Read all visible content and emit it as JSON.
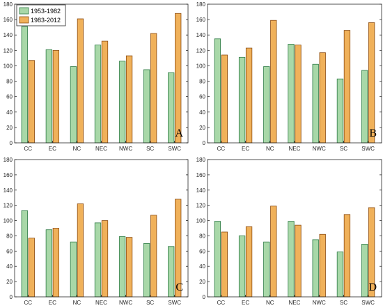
{
  "colors": {
    "series1": "#a8d8a8",
    "series1_stroke": "#2d7a45",
    "series2": "#f0b15a",
    "series2_stroke": "#8a4a10",
    "axis": "#262626"
  },
  "chart_data": [
    {
      "type": "bar",
      "panel_label": "A",
      "categories": [
        "CC",
        "EC",
        "NC",
        "NEC",
        "NWC",
        "SC",
        "SWC"
      ],
      "series": [
        {
          "name": "1953-1982",
          "values": [
            151,
            121,
            99,
            127,
            106,
            95,
            91
          ]
        },
        {
          "name": "1983-2012",
          "values": [
            107,
            120,
            161,
            132,
            113,
            142,
            168
          ]
        }
      ],
      "yticks": [
        0,
        20,
        40,
        60,
        80,
        100,
        120,
        140,
        160,
        180
      ],
      "ylim": [
        0,
        180
      ],
      "legend": "top-left",
      "grid": false
    },
    {
      "type": "bar",
      "panel_label": "B",
      "categories": [
        "CC",
        "EC",
        "NC",
        "NEC",
        "NWC",
        "SC",
        "SWC"
      ],
      "series": [
        {
          "name": "1953-1982",
          "values": [
            135,
            111,
            99,
            128,
            102,
            83,
            94
          ]
        },
        {
          "name": "1983-2012",
          "values": [
            114,
            123,
            159,
            127,
            117,
            146,
            156
          ]
        }
      ],
      "yticks": [
        0,
        20,
        40,
        60,
        80,
        100,
        120,
        140,
        160,
        180
      ],
      "ylim": [
        0,
        180
      ],
      "grid": false
    },
    {
      "type": "bar",
      "panel_label": "C",
      "categories": [
        "CC",
        "EC",
        "NC",
        "NEC",
        "NWC",
        "SC",
        "SWC"
      ],
      "series": [
        {
          "name": "1953-1982",
          "values": [
            113,
            88,
            72,
            97,
            79,
            70,
            66
          ]
        },
        {
          "name": "1983-2012",
          "values": [
            77,
            90,
            122,
            100,
            78,
            107,
            128
          ]
        }
      ],
      "yticks": [
        0,
        20,
        40,
        60,
        80,
        100,
        120,
        140,
        160,
        180
      ],
      "ylim": [
        0,
        180
      ],
      "grid": false
    },
    {
      "type": "bar",
      "panel_label": "D",
      "categories": [
        "CC",
        "EC",
        "NC",
        "NEC",
        "NWC",
        "SC",
        "SWC"
      ],
      "series": [
        {
          "name": "1953-1982",
          "values": [
            99,
            80,
            72,
            99,
            75,
            59,
            69
          ]
        },
        {
          "name": "1983-2012",
          "values": [
            85,
            92,
            119,
            94,
            82,
            108,
            117
          ]
        }
      ],
      "yticks": [
        0,
        20,
        40,
        60,
        80,
        100,
        120,
        140,
        160,
        180
      ],
      "ylim": [
        0,
        180
      ],
      "grid": false
    }
  ]
}
